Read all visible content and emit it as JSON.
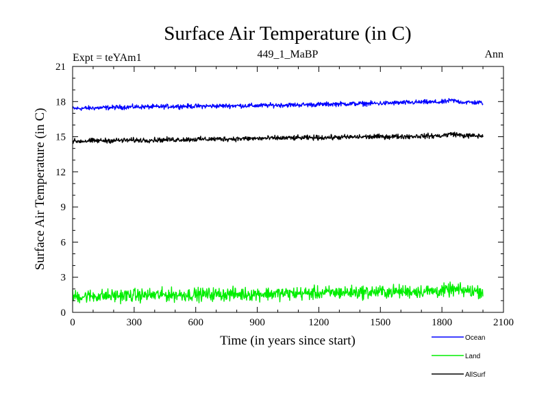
{
  "chart_data": {
    "type": "line",
    "title": "Surface Air Temperature (in C)",
    "subtitle": "449_1_MaBP",
    "left_label": "Expt = teYAm1",
    "right_label": "Ann",
    "xlabel": "Time (in years since start)",
    "ylabel": "Surface Air Temperature (in C)",
    "xlim": [
      0,
      2100
    ],
    "ylim": [
      0,
      21
    ],
    "x_ticks": [
      0,
      300,
      600,
      900,
      1200,
      1500,
      1800,
      2100
    ],
    "y_ticks": [
      0,
      3,
      6,
      9,
      12,
      15,
      18,
      21
    ],
    "legend_position": "bottom-right",
    "series": [
      {
        "name": "Ocean",
        "color": "#0000ff",
        "x": [
          0,
          100,
          200,
          300,
          400,
          500,
          600,
          700,
          800,
          900,
          1000,
          1100,
          1200,
          1300,
          1400,
          1500,
          1600,
          1700,
          1800,
          1850,
          1900,
          2000
        ],
        "values": [
          17.4,
          17.45,
          17.5,
          17.55,
          17.55,
          17.6,
          17.6,
          17.62,
          17.65,
          17.65,
          17.7,
          17.72,
          17.75,
          17.8,
          17.82,
          17.85,
          17.9,
          17.95,
          17.95,
          18.1,
          17.95,
          17.9
        ],
        "noise": 0.12
      },
      {
        "name": "Land",
        "color": "#00ee00",
        "x": [
          0,
          100,
          200,
          300,
          400,
          500,
          600,
          700,
          800,
          900,
          1000,
          1100,
          1200,
          1300,
          1400,
          1500,
          1600,
          1700,
          1800,
          1850,
          1900,
          2000
        ],
        "values": [
          1.35,
          1.4,
          1.42,
          1.45,
          1.48,
          1.5,
          1.52,
          1.55,
          1.55,
          1.58,
          1.6,
          1.62,
          1.65,
          1.7,
          1.72,
          1.75,
          1.78,
          1.8,
          1.82,
          1.95,
          1.85,
          1.8
        ],
        "noise": 0.35
      },
      {
        "name": "AllSurf",
        "color": "#000000",
        "x": [
          0,
          100,
          200,
          300,
          400,
          500,
          600,
          700,
          800,
          900,
          1000,
          1100,
          1200,
          1300,
          1400,
          1500,
          1600,
          1700,
          1800,
          1850,
          1900,
          2000
        ],
        "values": [
          14.6,
          14.65,
          14.68,
          14.7,
          14.72,
          14.75,
          14.78,
          14.8,
          14.82,
          14.85,
          14.88,
          14.9,
          14.92,
          14.95,
          14.98,
          15.0,
          15.02,
          15.05,
          15.08,
          15.25,
          15.1,
          15.05
        ],
        "noise": 0.13
      }
    ]
  }
}
